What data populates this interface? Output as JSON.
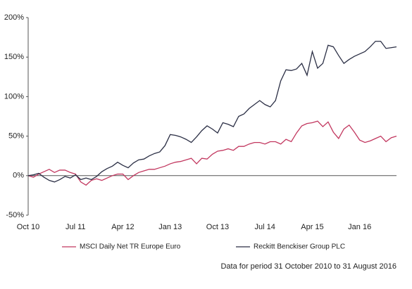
{
  "chart_data": {
    "type": "line",
    "categories": [
      "Oct 10",
      null,
      null,
      null,
      null,
      null,
      null,
      null,
      null,
      "Jul 11",
      null,
      null,
      null,
      null,
      null,
      null,
      null,
      null,
      "Apr 12",
      null,
      null,
      null,
      null,
      null,
      null,
      null,
      null,
      "Jan 13",
      null,
      null,
      null,
      null,
      null,
      null,
      null,
      null,
      "Oct 13",
      null,
      null,
      null,
      null,
      null,
      null,
      null,
      null,
      "Jul 14",
      null,
      null,
      null,
      null,
      null,
      null,
      null,
      null,
      "Apr 15",
      null,
      null,
      null,
      null,
      null,
      null,
      null,
      null,
      "Jan 16",
      null,
      null,
      null,
      null,
      null,
      null,
      null
    ],
    "series": [
      {
        "name": "MSCI Daily Net TR Europe Euro",
        "color": "#c2375f",
        "values": [
          0,
          -2,
          2,
          5,
          8,
          4,
          7,
          7,
          4,
          2,
          -8,
          -12,
          -6,
          -4,
          -6,
          -3,
          0,
          2,
          2,
          -5,
          0,
          4,
          6,
          8,
          8,
          10,
          12,
          15,
          17,
          18,
          20,
          22,
          15,
          22,
          21,
          27,
          31,
          32,
          34,
          32,
          37,
          37,
          40,
          42,
          42,
          40,
          43,
          43,
          40,
          46,
          43,
          54,
          63,
          66,
          67,
          69,
          62,
          68,
          55,
          47,
          59,
          64,
          55,
          45,
          42,
          44,
          47,
          50,
          43,
          48,
          50
        ]
      },
      {
        "name": "Reckitt Benckiser Group PLC",
        "color": "#2b2f45",
        "values": [
          0,
          1,
          3,
          -2,
          -6,
          -8,
          -5,
          -1,
          -3,
          1,
          -5,
          -3,
          -5,
          -1,
          5,
          9,
          12,
          17,
          13,
          10,
          16,
          20,
          21,
          25,
          28,
          30,
          38,
          52,
          51,
          49,
          46,
          42,
          49,
          57,
          63,
          59,
          54,
          67,
          65,
          62,
          75,
          78,
          85,
          90,
          95,
          90,
          87,
          95,
          120,
          134,
          133,
          135,
          142,
          127,
          157,
          136,
          142,
          165,
          163,
          152,
          142,
          147,
          151,
          154,
          157,
          163,
          170,
          170,
          161,
          162,
          163
        ]
      }
    ],
    "ylim": [
      -50,
      200
    ],
    "yticks": [
      {
        "value": -50,
        "label": "-50%"
      },
      {
        "value": 0,
        "label": "0%"
      },
      {
        "value": 50,
        "label": "50%"
      },
      {
        "value": 100,
        "label": "100%"
      },
      {
        "value": 150,
        "label": "150%"
      },
      {
        "value": 200,
        "label": "200%"
      }
    ],
    "footnote": "Data for period 31 October 2010 to 31 August 2016"
  }
}
